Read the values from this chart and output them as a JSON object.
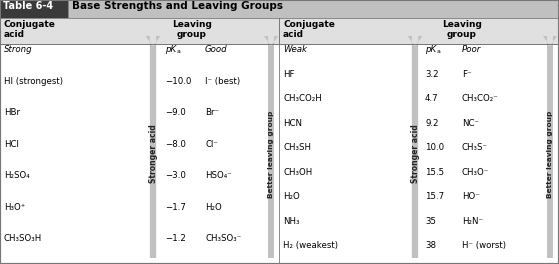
{
  "title_box": "Table 6-4",
  "title_text": "Base Strengths and Leaving Groups",
  "left_col1_label": "Strong",
  "left_col1": [
    "HI (strongest)",
    "HBr",
    "HCl",
    "H₂SO₄",
    "H₃O⁺",
    "CH₃SO₃H"
  ],
  "left_col2": [
    "−10.0",
    "−9.0",
    "−8.0",
    "−3.0",
    "−1.7",
    "−1.2"
  ],
  "left_col3_label": "Good",
  "left_col3": [
    "I⁻ (best)",
    "Br⁻",
    "Cl⁻",
    "HSO₄⁻",
    "H₂O",
    "CH₃SO₃⁻"
  ],
  "right_col1_label": "Weak",
  "right_col1": [
    "HF",
    "CH₃CO₂H",
    "HCN",
    "CH₃SH",
    "CH₃OH",
    "H₂O",
    "NH₃",
    "H₂ (weakest)"
  ],
  "right_col2": [
    "3.2",
    "4.7",
    "9.2",
    "10.0",
    "15.5",
    "15.7",
    "35",
    "38"
  ],
  "right_col3_label": "Poor",
  "right_col3": [
    "F⁻",
    "CH₃CO₂⁻",
    "NC⁻",
    "CH₃S⁻",
    "CH₃O⁻",
    "HO⁻",
    "H₂N⁻",
    "H⁻ (worst)"
  ],
  "arrow_color": "#c0c0c0",
  "title_dark_bg": "#3a3a3a",
  "title_light_bg": "#c0c0c0",
  "header_bg": "#e0e0e0",
  "body_bg": "#ffffff",
  "border_color": "#777777"
}
